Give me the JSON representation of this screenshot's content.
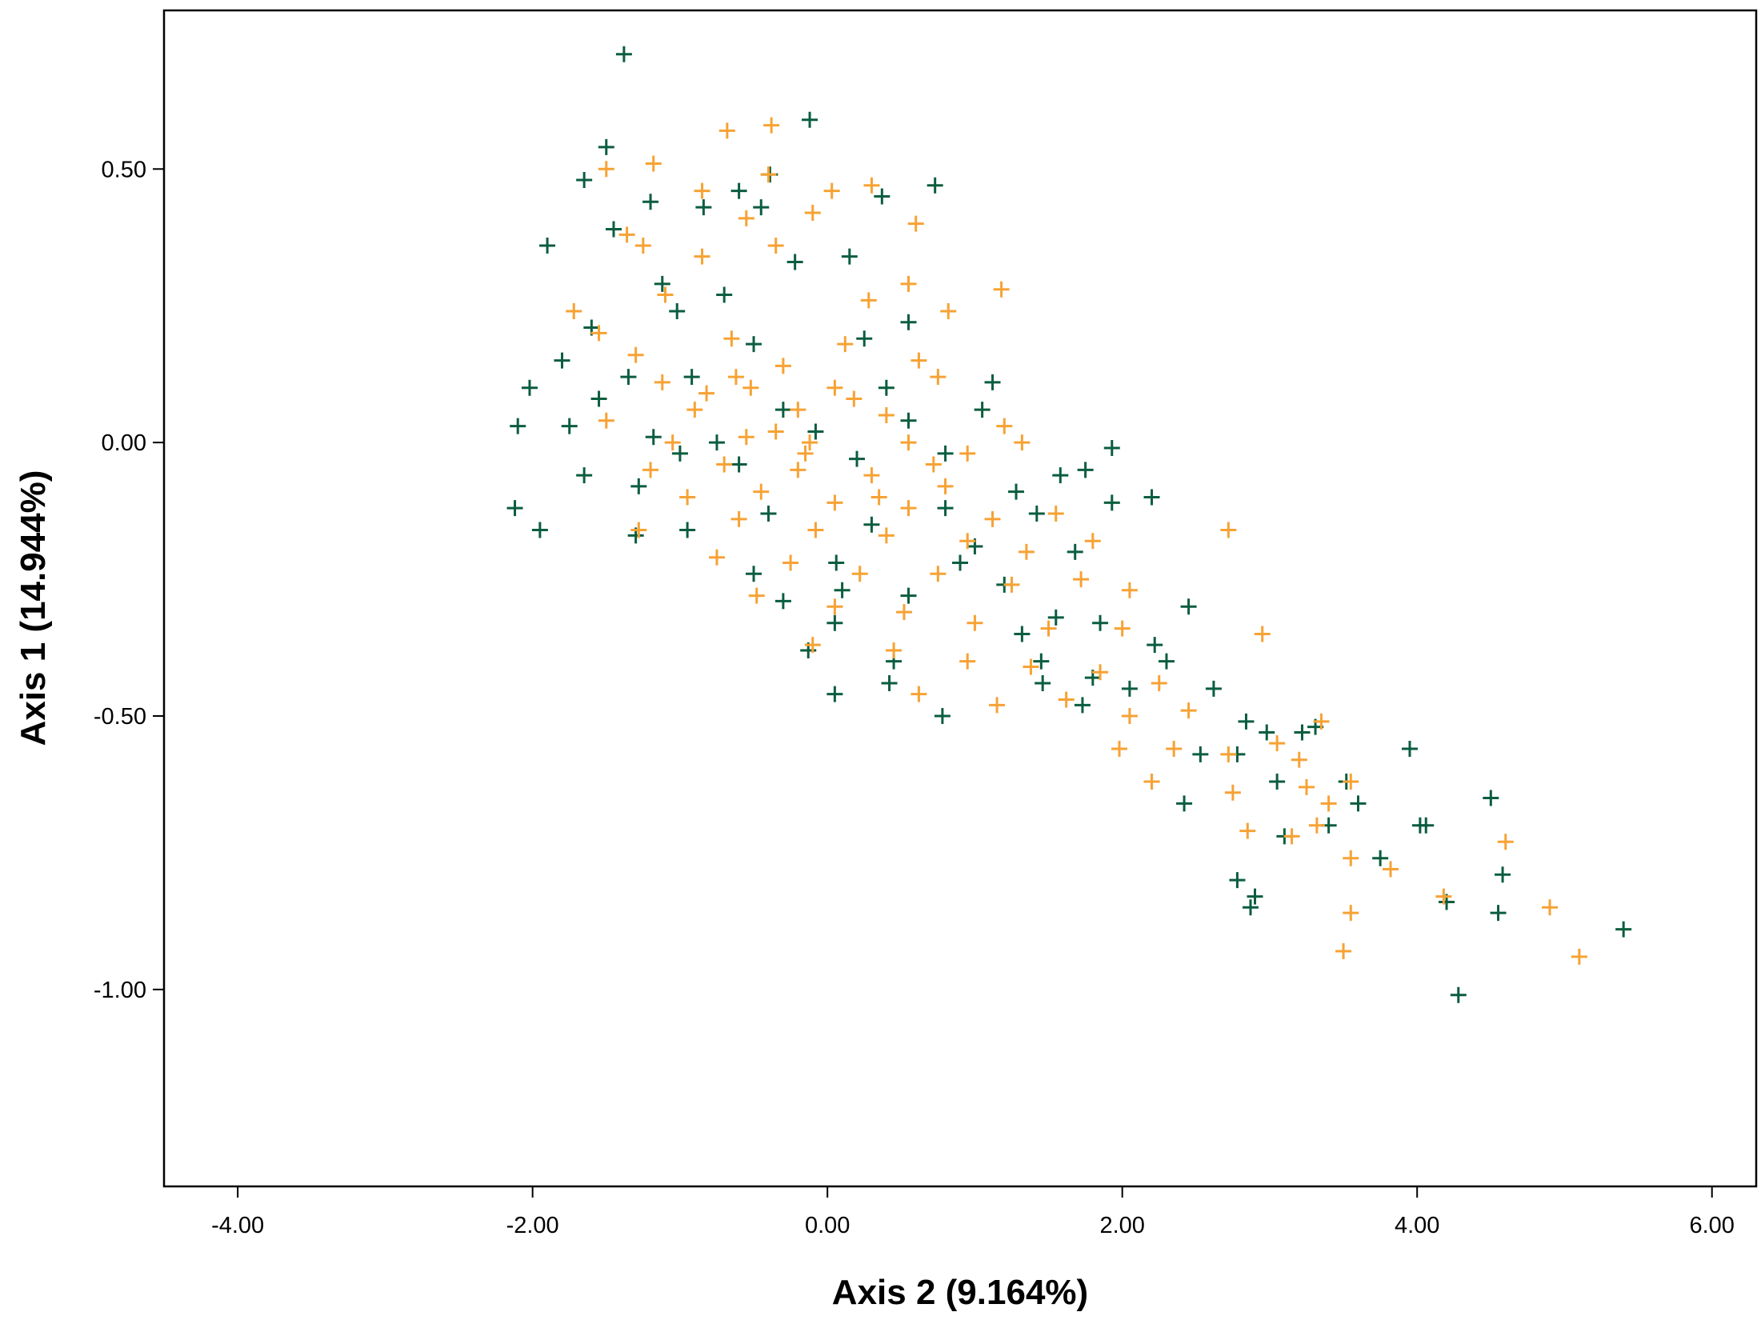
{
  "colors": {
    "green": "#0b5d3f",
    "orange": "#f7a234",
    "frame": "#000000"
  },
  "chart_data": {
    "type": "scatter",
    "title": "",
    "xlabel": "Axis 2 (9.164%)",
    "ylabel": "Axis 1 (14.944%)",
    "xlim": [
      -4.5,
      6.3
    ],
    "ylim": [
      -1.36,
      0.79
    ],
    "xticks": [
      -4,
      -2,
      0,
      2,
      4,
      6
    ],
    "yticks": [
      -1,
      -0.5,
      0,
      0.5
    ],
    "xtick_labels": [
      "-4.00",
      "-2.00",
      "0.00",
      "2.00",
      "4.00",
      "6.00"
    ],
    "ytick_labels": [
      "-1.00",
      "-0.50",
      "0.00",
      "0.50"
    ],
    "marker": "+",
    "grid": false,
    "series": [
      {
        "color": "#0b5d3f",
        "points": [
          [
            -1.38,
            0.71
          ],
          [
            -0.12,
            0.59
          ],
          [
            -1.5,
            0.54
          ],
          [
            0.73,
            0.47
          ],
          [
            -1.65,
            0.48
          ],
          [
            -0.39,
            0.49
          ],
          [
            0.37,
            0.45
          ],
          [
            -1.2,
            0.44
          ],
          [
            -0.84,
            0.43
          ],
          [
            -0.6,
            0.46
          ],
          [
            -0.45,
            0.43
          ],
          [
            -1.9,
            0.36
          ],
          [
            -1.45,
            0.39
          ],
          [
            -1.12,
            0.29
          ],
          [
            -0.22,
            0.33
          ],
          [
            0.15,
            0.34
          ],
          [
            -1.6,
            0.21
          ],
          [
            -1.02,
            0.24
          ],
          [
            -0.7,
            0.27
          ],
          [
            0.55,
            0.22
          ],
          [
            -1.8,
            0.15
          ],
          [
            -1.35,
            0.12
          ],
          [
            -0.5,
            0.18
          ],
          [
            0.25,
            0.19
          ],
          [
            -2.02,
            0.1
          ],
          [
            -1.55,
            0.08
          ],
          [
            -0.92,
            0.12
          ],
          [
            -0.3,
            0.06
          ],
          [
            0.4,
            0.1
          ],
          [
            1.12,
            0.11
          ],
          [
            -2.1,
            0.03
          ],
          [
            -1.75,
            0.03
          ],
          [
            -1.18,
            0.01
          ],
          [
            -0.08,
            0.02
          ],
          [
            1.05,
            0.06
          ],
          [
            -1.65,
            -0.06
          ],
          [
            -1.28,
            -0.08
          ],
          [
            -0.6,
            -0.04
          ],
          [
            0.2,
            -0.03
          ],
          [
            0.8,
            -0.02
          ],
          [
            -2.12,
            -0.12
          ],
          [
            -1.95,
            -0.16
          ],
          [
            -1.3,
            -0.17
          ],
          [
            -0.95,
            -0.16
          ],
          [
            -0.4,
            -0.13
          ],
          [
            0.3,
            -0.15
          ],
          [
            1.42,
            -0.13
          ],
          [
            1.58,
            -0.06
          ],
          [
            1.93,
            -0.01
          ],
          [
            1.75,
            -0.05
          ],
          [
            1.93,
            -0.11
          ],
          [
            2.2,
            -0.1
          ],
          [
            1.0,
            -0.19
          ],
          [
            0.06,
            -0.22
          ],
          [
            -0.5,
            -0.24
          ],
          [
            -0.3,
            -0.29
          ],
          [
            0.1,
            -0.27
          ],
          [
            0.55,
            -0.28
          ],
          [
            1.2,
            -0.26
          ],
          [
            1.55,
            -0.32
          ],
          [
            1.32,
            -0.35
          ],
          [
            1.85,
            -0.33
          ],
          [
            2.22,
            -0.37
          ],
          [
            2.45,
            -0.3
          ],
          [
            0.05,
            -0.33
          ],
          [
            -0.13,
            -0.38
          ],
          [
            0.45,
            -0.4
          ],
          [
            1.45,
            -0.4
          ],
          [
            1.8,
            -0.43
          ],
          [
            2.05,
            -0.45
          ],
          [
            2.3,
            -0.4
          ],
          [
            0.05,
            -0.46
          ],
          [
            0.42,
            -0.44
          ],
          [
            0.78,
            -0.5
          ],
          [
            1.46,
            -0.44
          ],
          [
            1.73,
            -0.48
          ],
          [
            2.62,
            -0.45
          ],
          [
            2.84,
            -0.51
          ],
          [
            2.98,
            -0.53
          ],
          [
            2.53,
            -0.57
          ],
          [
            2.78,
            -0.57
          ],
          [
            3.22,
            -0.53
          ],
          [
            3.31,
            -0.52
          ],
          [
            3.95,
            -0.56
          ],
          [
            2.2,
            -0.62
          ],
          [
            3.05,
            -0.62
          ],
          [
            2.42,
            -0.66
          ],
          [
            3.52,
            -0.62
          ],
          [
            3.6,
            -0.66
          ],
          [
            3.1,
            -0.72
          ],
          [
            3.4,
            -0.7
          ],
          [
            4.02,
            -0.7
          ],
          [
            4.06,
            -0.7
          ],
          [
            4.5,
            -0.65
          ],
          [
            3.75,
            -0.76
          ],
          [
            2.78,
            -0.8
          ],
          [
            4.58,
            -0.79
          ],
          [
            2.9,
            -0.83
          ],
          [
            2.87,
            -0.85
          ],
          [
            4.2,
            -0.84
          ],
          [
            4.55,
            -0.86
          ],
          [
            5.4,
            -0.89
          ],
          [
            4.28,
            -1.01
          ],
          [
            0.8,
            -0.12
          ],
          [
            1.28,
            -0.09
          ],
          [
            -1.0,
            -0.02
          ],
          [
            0.55,
            0.04
          ],
          [
            -0.75,
            0.0
          ],
          [
            0.9,
            -0.22
          ],
          [
            1.68,
            -0.2
          ]
        ]
      },
      {
        "color": "#f7a234",
        "points": [
          [
            -0.68,
            0.57
          ],
          [
            -0.38,
            0.58
          ],
          [
            -1.18,
            0.51
          ],
          [
            -1.5,
            0.5
          ],
          [
            -0.4,
            0.49
          ],
          [
            0.03,
            0.46
          ],
          [
            -0.85,
            0.46
          ],
          [
            0.3,
            0.47
          ],
          [
            -1.36,
            0.38
          ],
          [
            -0.55,
            0.41
          ],
          [
            -0.1,
            0.42
          ],
          [
            0.6,
            0.4
          ],
          [
            -1.25,
            0.36
          ],
          [
            -0.85,
            0.34
          ],
          [
            -0.35,
            0.36
          ],
          [
            0.55,
            0.29
          ],
          [
            1.18,
            0.28
          ],
          [
            -1.72,
            0.24
          ],
          [
            -1.1,
            0.27
          ],
          [
            0.28,
            0.26
          ],
          [
            0.82,
            0.24
          ],
          [
            -1.55,
            0.2
          ],
          [
            -0.65,
            0.19
          ],
          [
            0.12,
            0.18
          ],
          [
            -1.3,
            0.16
          ],
          [
            -0.3,
            0.14
          ],
          [
            0.62,
            0.15
          ],
          [
            -1.12,
            0.11
          ],
          [
            -0.82,
            0.09
          ],
          [
            -0.52,
            0.1
          ],
          [
            0.05,
            0.1
          ],
          [
            0.75,
            0.12
          ],
          [
            -1.5,
            0.04
          ],
          [
            -0.9,
            0.06
          ],
          [
            -0.2,
            0.06
          ],
          [
            0.4,
            0.05
          ],
          [
            1.2,
            0.03
          ],
          [
            -1.05,
            0.0
          ],
          [
            -0.55,
            0.01
          ],
          [
            -0.12,
            0.0
          ],
          [
            0.55,
            0.0
          ],
          [
            0.95,
            -0.02
          ],
          [
            1.32,
            0.0
          ],
          [
            -1.2,
            -0.05
          ],
          [
            -0.7,
            -0.04
          ],
          [
            -0.2,
            -0.05
          ],
          [
            0.3,
            -0.06
          ],
          [
            0.8,
            -0.08
          ],
          [
            -0.95,
            -0.1
          ],
          [
            -0.45,
            -0.09
          ],
          [
            0.05,
            -0.11
          ],
          [
            0.55,
            -0.12
          ],
          [
            1.12,
            -0.14
          ],
          [
            1.55,
            -0.13
          ],
          [
            -1.28,
            -0.16
          ],
          [
            -0.6,
            -0.14
          ],
          [
            -0.08,
            -0.16
          ],
          [
            0.4,
            -0.17
          ],
          [
            0.95,
            -0.18
          ],
          [
            1.35,
            -0.2
          ],
          [
            1.8,
            -0.18
          ],
          [
            -0.75,
            -0.21
          ],
          [
            -0.25,
            -0.22
          ],
          [
            0.22,
            -0.24
          ],
          [
            0.75,
            -0.24
          ],
          [
            1.25,
            -0.26
          ],
          [
            1.72,
            -0.25
          ],
          [
            2.05,
            -0.27
          ],
          [
            -0.48,
            -0.28
          ],
          [
            0.05,
            -0.3
          ],
          [
            0.52,
            -0.31
          ],
          [
            1.0,
            -0.33
          ],
          [
            1.5,
            -0.34
          ],
          [
            2.0,
            -0.34
          ],
          [
            -0.1,
            -0.37
          ],
          [
            0.45,
            -0.38
          ],
          [
            0.95,
            -0.4
          ],
          [
            1.38,
            -0.41
          ],
          [
            1.85,
            -0.42
          ],
          [
            2.25,
            -0.44
          ],
          [
            2.72,
            -0.16
          ],
          [
            2.95,
            -0.35
          ],
          [
            0.62,
            -0.46
          ],
          [
            1.15,
            -0.48
          ],
          [
            1.62,
            -0.47
          ],
          [
            2.05,
            -0.5
          ],
          [
            2.45,
            -0.49
          ],
          [
            1.98,
            -0.56
          ],
          [
            2.35,
            -0.56
          ],
          [
            2.72,
            -0.57
          ],
          [
            3.05,
            -0.55
          ],
          [
            3.35,
            -0.51
          ],
          [
            3.2,
            -0.58
          ],
          [
            2.2,
            -0.62
          ],
          [
            2.75,
            -0.64
          ],
          [
            3.25,
            -0.63
          ],
          [
            3.55,
            -0.62
          ],
          [
            3.4,
            -0.66
          ],
          [
            2.85,
            -0.71
          ],
          [
            3.32,
            -0.7
          ],
          [
            3.15,
            -0.72
          ],
          [
            4.6,
            -0.73
          ],
          [
            3.55,
            -0.76
          ],
          [
            3.82,
            -0.78
          ],
          [
            4.18,
            -0.83
          ],
          [
            3.55,
            -0.86
          ],
          [
            4.9,
            -0.85
          ],
          [
            5.1,
            -0.94
          ],
          [
            3.5,
            -0.93
          ],
          [
            -0.35,
            0.02
          ],
          [
            -0.15,
            -0.02
          ],
          [
            0.18,
            0.08
          ],
          [
            -0.62,
            0.12
          ],
          [
            0.72,
            -0.04
          ],
          [
            0.35,
            -0.1
          ]
        ]
      }
    ]
  }
}
